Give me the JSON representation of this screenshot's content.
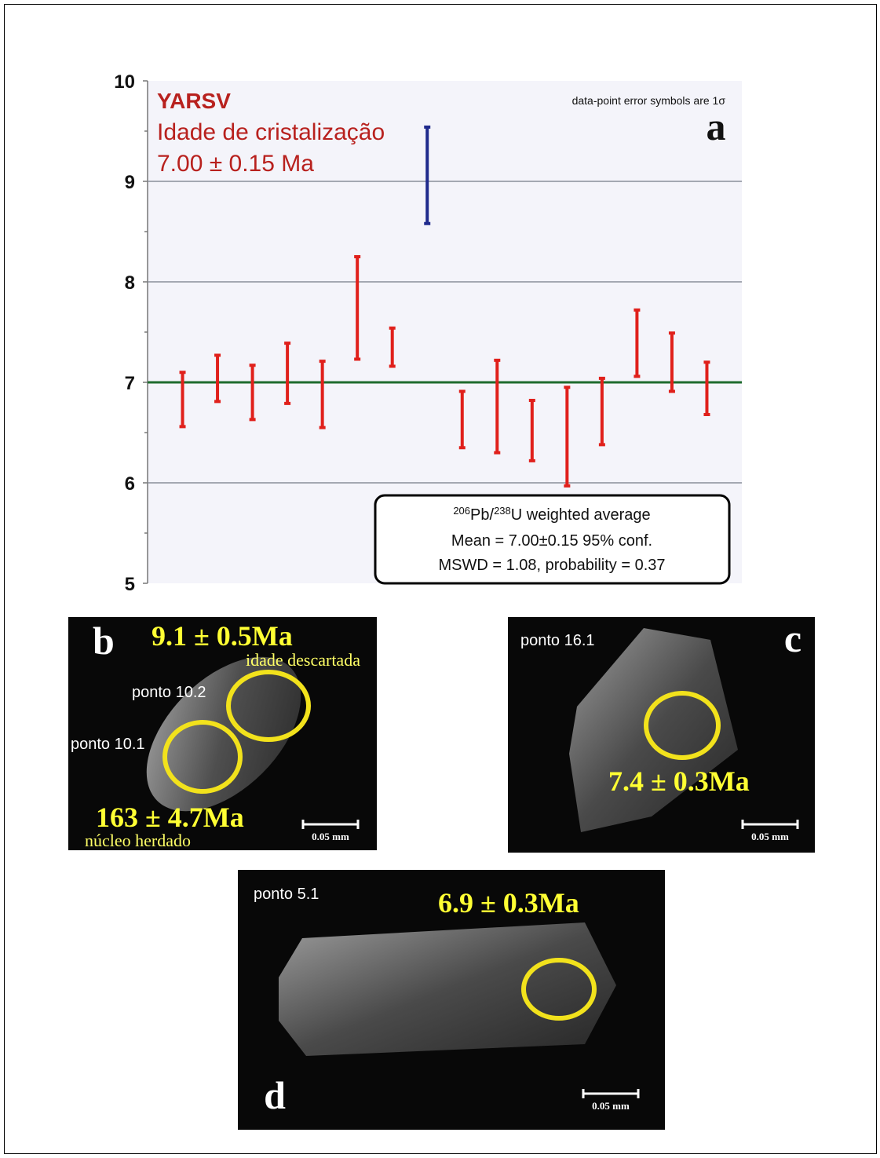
{
  "chart_data": {
    "type": "errorbar",
    "annotations": {
      "sample": "YARSV",
      "label": "Idade de cristalização",
      "age": "7.00 ± 0.15 Ma",
      "note": "data-point error symbols are 1σ",
      "panel": "a"
    },
    "x": [
      1,
      2,
      3,
      4,
      5,
      6,
      7,
      8,
      9,
      10,
      11,
      12,
      13,
      14,
      15,
      16
    ],
    "xlim": [
      0,
      17
    ],
    "series": [
      {
        "values": [
          6.83,
          7.04,
          6.9,
          7.09,
          6.88,
          7.74,
          7.35,
          9.06,
          6.63,
          6.76,
          6.52,
          6.46,
          6.71,
          7.39,
          7.2,
          6.94
        ],
        "errors": [
          0.27,
          0.23,
          0.27,
          0.3,
          0.33,
          0.51,
          0.19,
          0.48,
          0.28,
          0.46,
          0.3,
          0.49,
          0.33,
          0.33,
          0.29,
          0.26
        ],
        "colors": [
          "#e0201b",
          "#e0201b",
          "#e0201b",
          "#e0201b",
          "#e0201b",
          "#e0201b",
          "#e0201b",
          "#1f2a8c",
          "#e0201b",
          "#e0201b",
          "#e0201b",
          "#e0201b",
          "#e0201b",
          "#e0201b",
          "#e0201b",
          "#e0201b"
        ]
      }
    ],
    "mean": 7.0,
    "mean_color": "#1e6b2e",
    "ylim": [
      5,
      10
    ],
    "yticks": [
      5,
      6,
      7,
      8,
      9,
      10
    ],
    "yminor_ticks": [
      5.5,
      6.5,
      7.5,
      8.5,
      9.5
    ],
    "grid": true,
    "stats_box": {
      "line1": {
        "sup1": "206",
        "text1": "Pb/",
        "sup2": "238",
        "text2": "U weighted average"
      },
      "line2": "Mean = 7.00±0.15  95% conf.",
      "line3": "MSWD = 1.08, probability = 0.37"
    }
  },
  "panels": {
    "b": {
      "letter": "b",
      "age1": "9.1 ± 0.5Ma",
      "note1": "idade descartada",
      "spot1": "ponto 10.2",
      "spot2": "ponto 10.1",
      "age2": "163 ± 4.7Ma",
      "note2": "núcleo herdado",
      "scale": "0.05 mm"
    },
    "c": {
      "letter": "c",
      "spot": "ponto 16.1",
      "age": "7.4 ± 0.3Ma",
      "scale": "0.05 mm"
    },
    "d": {
      "letter": "d",
      "spot": "ponto 5.1",
      "age": "6.9 ± 0.3Ma",
      "scale": "0.05 mm"
    }
  }
}
